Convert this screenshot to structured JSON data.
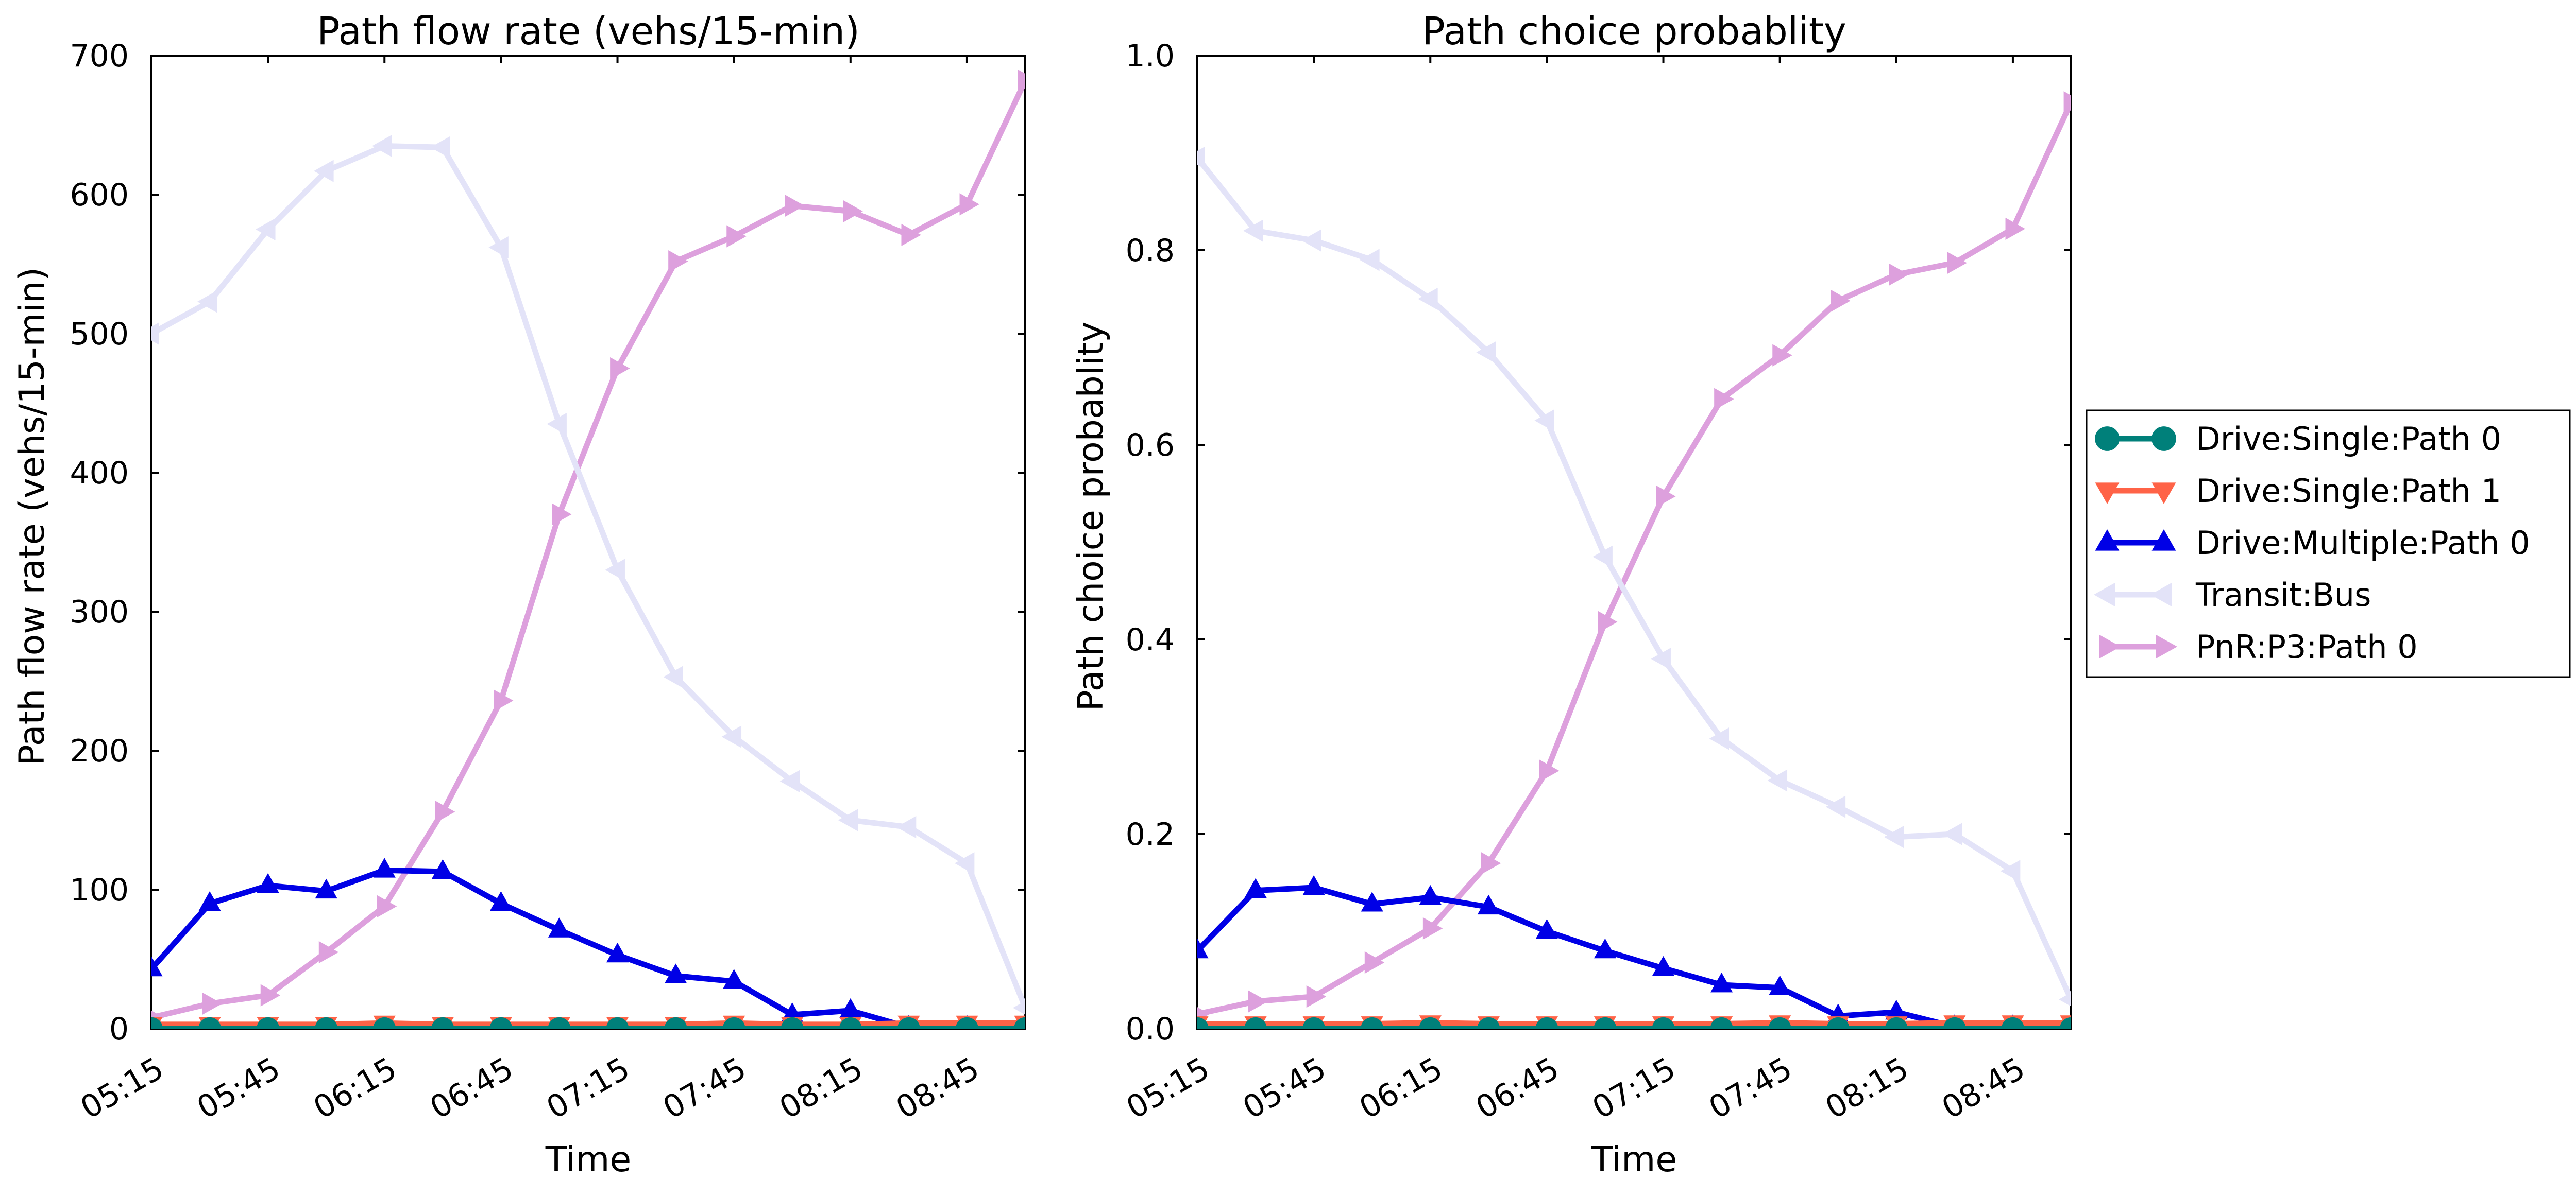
{
  "colors": {
    "drive_single_path0": "#00807a",
    "drive_single_path1": "#ff6347",
    "drive_multiple_path0": "#0000e6",
    "transit_bus": "#e3e3f8",
    "pnr_p3_path0": "#dda0dd"
  },
  "legend": {
    "placement": "right-outside",
    "entries": [
      {
        "label": "Drive:Single:Path 0",
        "color_key": "drive_single_path0",
        "marker": "circle"
      },
      {
        "label": "Drive:Single:Path 1",
        "color_key": "drive_single_path1",
        "marker": "triangle-down"
      },
      {
        "label": "Drive:Multiple:Path 0",
        "color_key": "drive_multiple_path0",
        "marker": "triangle-up"
      },
      {
        "label": "Transit:Bus",
        "color_key": "transit_bus",
        "marker": "triangle-left"
      },
      {
        "label": "PnR:P3:Path 0",
        "color_key": "pnr_p3_path0",
        "marker": "triangle-right"
      }
    ]
  },
  "chart_data": [
    {
      "type": "line",
      "title": "Path flow rate (vehs/15-min)",
      "xlabel": "Time",
      "ylabel": "Path flow rate (vehs/15-min)",
      "grid": false,
      "x": [
        "05:15",
        "05:30",
        "05:45",
        "06:00",
        "06:15",
        "06:30",
        "06:45",
        "07:00",
        "07:15",
        "07:30",
        "07:45",
        "08:00",
        "08:15",
        "08:30",
        "08:45",
        "09:00"
      ],
      "xtick_labels": [
        "05:15",
        "05:45",
        "06:15",
        "06:45",
        "07:15",
        "07:45",
        "08:15",
        "08:45"
      ],
      "ylim": [
        0,
        700
      ],
      "yticks": [
        "0",
        "100",
        "200",
        "300",
        "400",
        "500",
        "600",
        "700"
      ],
      "series": [
        {
          "name": "Drive:Single:Path 0",
          "values": [
            0,
            0,
            0,
            0,
            0,
            0,
            0,
            0,
            0,
            0,
            0,
            0,
            0,
            0,
            0,
            0
          ]
        },
        {
          "name": "Drive:Single:Path 1",
          "values": [
            3,
            3,
            3,
            3,
            4,
            3,
            3,
            3,
            3,
            3,
            4,
            3,
            3,
            4,
            4,
            4
          ]
        },
        {
          "name": "Drive:Multiple:Path 0",
          "values": [
            43,
            90,
            103,
            99,
            114,
            113,
            90,
            71,
            53,
            38,
            34,
            10,
            13,
            1,
            1,
            1
          ]
        },
        {
          "name": "Transit:Bus",
          "values": [
            500,
            523,
            575,
            617,
            635,
            634,
            562,
            435,
            330,
            253,
            210,
            178,
            150,
            145,
            119,
            15
          ]
        },
        {
          "name": "PnR:P3:Path 0",
          "values": [
            8,
            18,
            24,
            55,
            88,
            156,
            236,
            370,
            475,
            552,
            570,
            592,
            588,
            571,
            593,
            682
          ]
        }
      ]
    },
    {
      "type": "line",
      "title": "Path choice probablity",
      "xlabel": "Time",
      "ylabel": "Path choice probablity",
      "grid": false,
      "x": [
        "05:15",
        "05:30",
        "05:45",
        "06:00",
        "06:15",
        "06:30",
        "06:45",
        "07:00",
        "07:15",
        "07:30",
        "07:45",
        "08:00",
        "08:15",
        "08:30",
        "08:45",
        "09:00"
      ],
      "xtick_labels": [
        "05:15",
        "05:45",
        "06:15",
        "06:45",
        "07:15",
        "07:45",
        "08:15",
        "08:45"
      ],
      "ylim": [
        0,
        1.0
      ],
      "yticks": [
        "0.0",
        "0.2",
        "0.4",
        "0.6",
        "0.8",
        "1.0"
      ],
      "series": [
        {
          "name": "Drive:Single:Path 0",
          "values": [
            0,
            0,
            0,
            0,
            0,
            0,
            0,
            0,
            0,
            0,
            0,
            0,
            0,
            0,
            0,
            0
          ]
        },
        {
          "name": "Drive:Single:Path 1",
          "values": [
            0.005,
            0.005,
            0.005,
            0.005,
            0.006,
            0.005,
            0.005,
            0.005,
            0.005,
            0.005,
            0.006,
            0.005,
            0.005,
            0.006,
            0.006,
            0.006
          ]
        },
        {
          "name": "Drive:Multiple:Path 0",
          "values": [
            0.08,
            0.142,
            0.145,
            0.128,
            0.135,
            0.125,
            0.1,
            0.08,
            0.062,
            0.045,
            0.042,
            0.013,
            0.017,
            0.002,
            0.002,
            0.002
          ]
        },
        {
          "name": "Transit:Bus",
          "values": [
            0.895,
            0.82,
            0.81,
            0.79,
            0.75,
            0.695,
            0.625,
            0.485,
            0.38,
            0.298,
            0.255,
            0.228,
            0.197,
            0.2,
            0.162,
            0.03
          ]
        },
        {
          "name": "PnR:P3:Path 0",
          "values": [
            0.015,
            0.028,
            0.033,
            0.068,
            0.103,
            0.17,
            0.265,
            0.418,
            0.547,
            0.647,
            0.692,
            0.748,
            0.775,
            0.787,
            0.822,
            0.952
          ]
        }
      ]
    }
  ]
}
